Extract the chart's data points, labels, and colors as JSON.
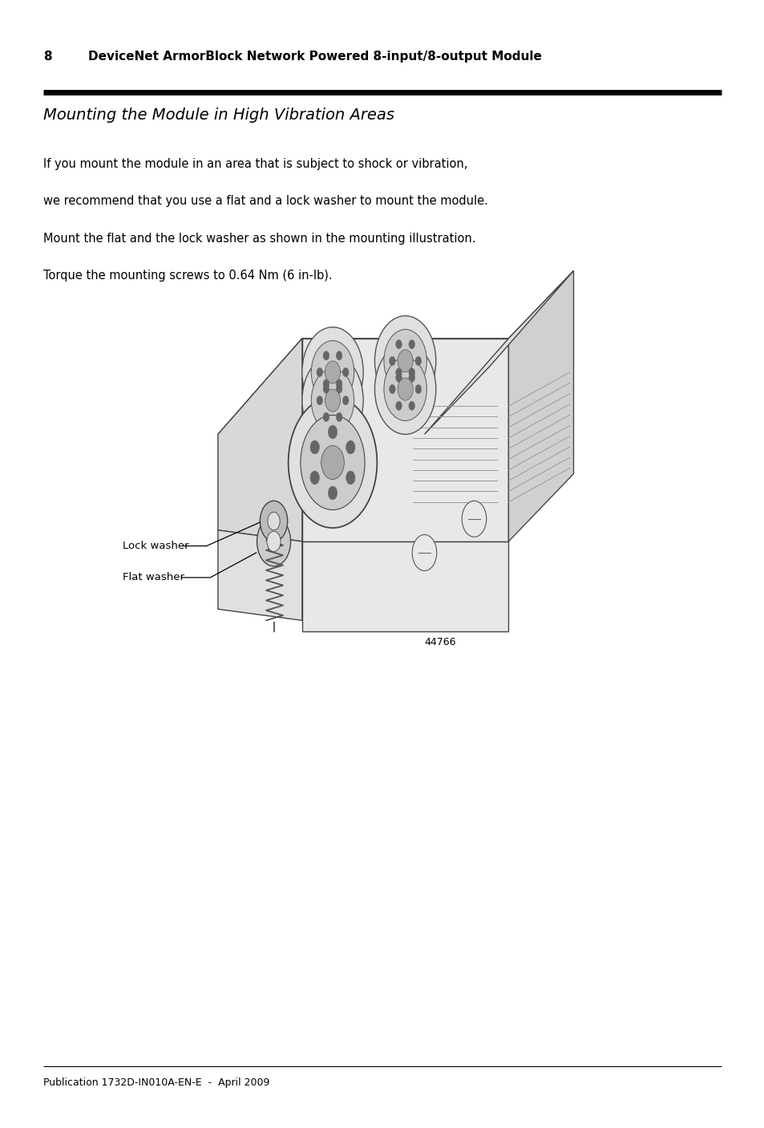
{
  "page_number": "8",
  "header_title": "DeviceNet ArmorBlock Network Powered 8-input/8-output Module",
  "section_title": "Mounting the Module in High Vibration Areas",
  "body_line1": "If you mount the module in an area that is subject to shock or vibration,",
  "body_line2": "we recommend that you use a flat and a lock washer to mount the module.",
  "body_line3": "Mount the flat and the lock washer as shown in the mounting illustration.",
  "body_line4": "Torque the mounting screws to 0.64 Nm (6 in-lb).",
  "label1": "Lock washer",
  "label2": "Flat washer",
  "figure_number": "44766",
  "footer_text": "Publication 1732D-IN010A-EN-E  -  April 2009",
  "bg_color": "#ffffff",
  "text_color": "#000000",
  "header_bar_color": "#000000"
}
